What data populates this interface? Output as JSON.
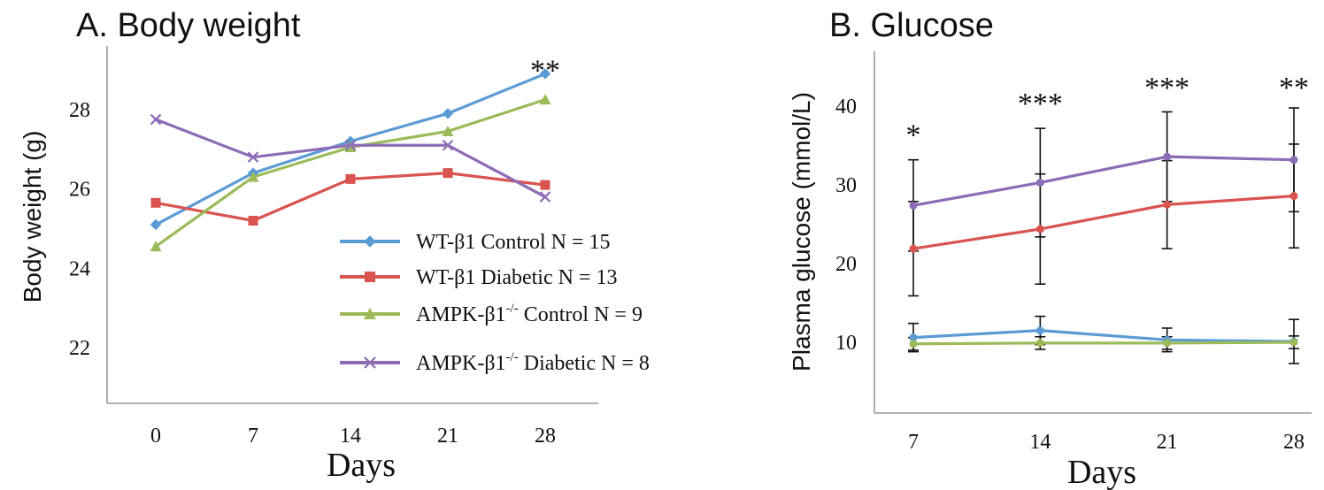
{
  "chart_data": [
    {
      "type": "line",
      "title": "A. Body weight",
      "xlabel": "Days",
      "ylabel": "Body weight (g)",
      "x": [
        0,
        7,
        14,
        21,
        28
      ],
      "x_tick_labels": [
        "0",
        "7",
        "14",
        "21",
        "28"
      ],
      "y_ticks": [
        22,
        24,
        26,
        28
      ],
      "ylim": [
        20.6,
        29.6
      ],
      "grid": false,
      "legend_position": "lower-right",
      "series": [
        {
          "name": "WT-β1 Control N = 15",
          "label_main": "WT-β1 Control N = 15",
          "label_sup": "",
          "label_rest": "",
          "color": "#5b9bd5",
          "marker": "diamond",
          "values": [
            25.1,
            26.4,
            27.2,
            27.9,
            28.9
          ]
        },
        {
          "name": "WT-β1 Diabetic N = 13",
          "label_main": "WT-β1 Diabetic N = 13",
          "label_sup": "",
          "label_rest": "",
          "color": "#d9534f",
          "marker": "square",
          "values": [
            25.65,
            25.2,
            26.25,
            26.4,
            26.1
          ]
        },
        {
          "name": "AMPK-β1-/- Control N = 9",
          "label_main": "AMPK-β1",
          "label_sup": "-/-",
          "label_rest": " Control N = 9",
          "color": "#9bbb59",
          "marker": "triangle",
          "values": [
            24.55,
            26.3,
            27.05,
            27.45,
            28.25
          ]
        },
        {
          "name": "AMPK-β1-/- Diabetic N = 8",
          "label_main": "AMPK-β1",
          "label_sup": "-/-",
          "label_rest": " Diabetic N = 8",
          "color": "#8e6bb5",
          "marker": "x",
          "values": [
            27.75,
            26.8,
            27.1,
            27.1,
            25.8
          ]
        }
      ],
      "annotations": [
        {
          "text": "**",
          "x": 28,
          "y": 29.5
        }
      ]
    },
    {
      "type": "line",
      "title": "B. Glucose",
      "xlabel": "Days",
      "ylabel": "Plasma glucose (mmol/L)",
      "x": [
        7,
        14,
        21,
        28
      ],
      "x_tick_labels": [
        "7",
        "14",
        "21",
        "28"
      ],
      "y_ticks": [
        10,
        20,
        30,
        40
      ],
      "ylim": [
        1,
        47
      ],
      "grid": false,
      "series": [
        {
          "color": "#5b9bd5",
          "values": [
            10.6,
            11.5,
            10.3,
            10.1
          ],
          "error": [
            1.8,
            1.8,
            1.5,
            2.8
          ]
        },
        {
          "color": "#d9534f",
          "values": [
            21.9,
            24.4,
            27.5,
            28.6
          ],
          "error": [
            6.0,
            7.0,
            5.6,
            6.6
          ]
        },
        {
          "color": "#9bbb59",
          "values": [
            9.8,
            9.9,
            9.9,
            10.0
          ],
          "error": [
            0.8,
            0.8,
            0.8,
            0.8
          ]
        },
        {
          "color": "#8e6bb5",
          "values": [
            27.4,
            30.3,
            33.6,
            33.2
          ],
          "error": [
            5.8,
            6.9,
            5.7,
            6.6
          ]
        }
      ],
      "annotations": [
        {
          "text": "*",
          "x": 7,
          "y": 36.5
        },
        {
          "text": "***",
          "x": 14,
          "y": 40.5
        },
        {
          "text": "***",
          "x": 21,
          "y": 42.5
        },
        {
          "text": "**",
          "x": 28,
          "y": 42.5
        }
      ]
    }
  ]
}
